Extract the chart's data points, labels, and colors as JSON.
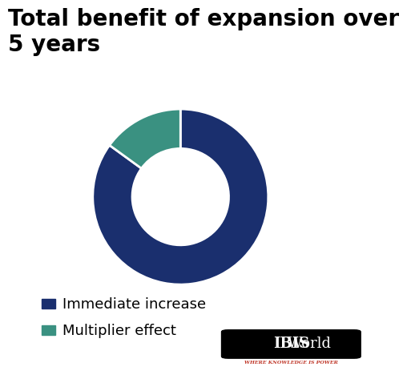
{
  "title": "Total benefit of expansion over\n5 years",
  "title_fontsize": 20,
  "title_fontweight": "bold",
  "slices": [
    85,
    15
  ],
  "colors": [
    "#1a2f6e",
    "#3a9181"
  ],
  "labels": [
    "Immediate increase",
    "Multiplier effect"
  ],
  "donut_width": 0.45,
  "start_angle": 90,
  "background_color": "#ffffff",
  "legend_fontsize": 13,
  "ibis_text_IBIS": "IBIS",
  "ibis_text_World": "World",
  "ibis_sub": "WHERE KNOWLEDGE IS POWER"
}
